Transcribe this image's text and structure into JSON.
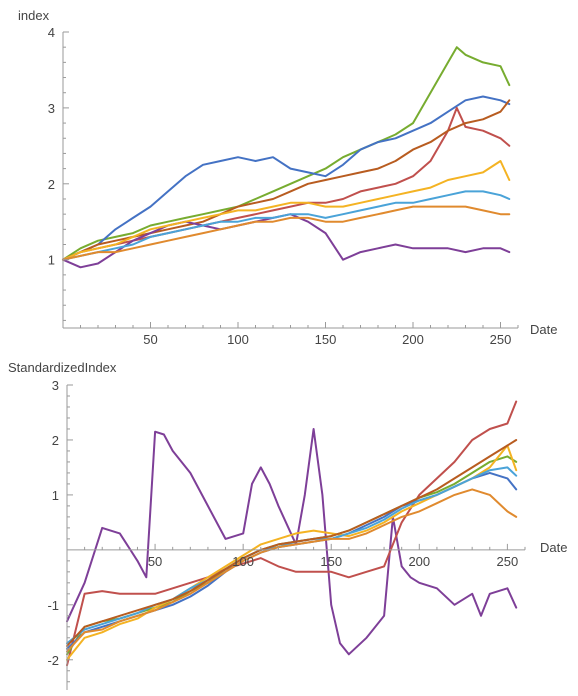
{
  "chart_data": [
    {
      "type": "line",
      "title": "",
      "xlabel": "Date",
      "ylabel": "index",
      "xlim": [
        0,
        260
      ],
      "ylim": [
        0.1,
        4.0
      ],
      "xticks": [
        50,
        100,
        150,
        200,
        250
      ],
      "yticks": [
        1,
        2,
        3,
        4
      ],
      "grid": false,
      "legend": "none",
      "series": [
        {
          "color": "#77ac30",
          "x": [
            0,
            10,
            20,
            30,
            40,
            50,
            60,
            70,
            80,
            90,
            100,
            110,
            120,
            130,
            140,
            150,
            160,
            170,
            180,
            190,
            200,
            210,
            220,
            225,
            230,
            240,
            250,
            255
          ],
          "values": [
            1.0,
            1.15,
            1.25,
            1.3,
            1.35,
            1.45,
            1.5,
            1.55,
            1.6,
            1.65,
            1.7,
            1.8,
            1.9,
            2.0,
            2.1,
            2.2,
            2.35,
            2.45,
            2.55,
            2.65,
            2.8,
            3.2,
            3.6,
            3.8,
            3.7,
            3.6,
            3.55,
            3.3
          ]
        },
        {
          "color": "#4472c4",
          "x": [
            0,
            10,
            20,
            30,
            40,
            50,
            60,
            70,
            80,
            90,
            100,
            110,
            120,
            130,
            140,
            150,
            160,
            170,
            180,
            190,
            200,
            210,
            220,
            230,
            240,
            250,
            255
          ],
          "values": [
            1.0,
            1.1,
            1.2,
            1.4,
            1.55,
            1.7,
            1.9,
            2.1,
            2.25,
            2.3,
            2.35,
            2.3,
            2.35,
            2.2,
            2.15,
            2.1,
            2.25,
            2.45,
            2.55,
            2.6,
            2.7,
            2.8,
            2.95,
            3.1,
            3.15,
            3.1,
            3.05
          ]
        },
        {
          "color": "#c0504d",
          "x": [
            0,
            10,
            20,
            30,
            40,
            50,
            60,
            70,
            80,
            90,
            100,
            110,
            120,
            130,
            140,
            150,
            160,
            170,
            180,
            190,
            200,
            210,
            220,
            225,
            230,
            240,
            250,
            255
          ],
          "values": [
            1.0,
            1.1,
            1.15,
            1.2,
            1.25,
            1.3,
            1.35,
            1.4,
            1.45,
            1.5,
            1.55,
            1.6,
            1.65,
            1.7,
            1.75,
            1.75,
            1.8,
            1.9,
            1.95,
            2.0,
            2.1,
            2.3,
            2.7,
            3.0,
            2.75,
            2.7,
            2.6,
            2.5
          ]
        },
        {
          "color": "#b85c20",
          "x": [
            0,
            10,
            20,
            30,
            40,
            50,
            60,
            70,
            80,
            90,
            100,
            110,
            120,
            130,
            140,
            150,
            160,
            170,
            180,
            190,
            200,
            210,
            220,
            230,
            240,
            250,
            255
          ],
          "values": [
            1.0,
            1.1,
            1.2,
            1.25,
            1.3,
            1.35,
            1.4,
            1.45,
            1.5,
            1.6,
            1.7,
            1.75,
            1.8,
            1.9,
            2.0,
            2.05,
            2.1,
            2.15,
            2.2,
            2.3,
            2.45,
            2.55,
            2.7,
            2.8,
            2.85,
            2.95,
            3.1
          ]
        },
        {
          "color": "#7e3f98",
          "x": [
            0,
            10,
            20,
            30,
            40,
            50,
            60,
            70,
            80,
            90,
            100,
            110,
            120,
            130,
            140,
            150,
            160,
            170,
            180,
            190,
            200,
            210,
            220,
            230,
            240,
            250,
            255
          ],
          "values": [
            1.0,
            0.9,
            0.95,
            1.1,
            1.25,
            1.35,
            1.45,
            1.5,
            1.45,
            1.4,
            1.45,
            1.5,
            1.55,
            1.6,
            1.5,
            1.35,
            1.0,
            1.1,
            1.15,
            1.2,
            1.15,
            1.15,
            1.15,
            1.1,
            1.15,
            1.15,
            1.1
          ]
        },
        {
          "color": "#f4b323",
          "x": [
            0,
            10,
            20,
            30,
            40,
            50,
            60,
            70,
            80,
            90,
            100,
            110,
            120,
            130,
            140,
            150,
            160,
            170,
            180,
            190,
            200,
            210,
            220,
            230,
            240,
            250,
            255
          ],
          "values": [
            1.0,
            1.1,
            1.15,
            1.2,
            1.3,
            1.4,
            1.45,
            1.5,
            1.55,
            1.6,
            1.65,
            1.65,
            1.7,
            1.75,
            1.75,
            1.7,
            1.7,
            1.75,
            1.8,
            1.85,
            1.9,
            1.95,
            2.05,
            2.1,
            2.15,
            2.3,
            2.05
          ]
        },
        {
          "color": "#4aa3d8",
          "x": [
            0,
            10,
            20,
            30,
            40,
            50,
            60,
            70,
            80,
            90,
            100,
            110,
            120,
            130,
            140,
            150,
            160,
            170,
            180,
            190,
            200,
            210,
            220,
            230,
            240,
            250,
            255
          ],
          "values": [
            1.0,
            1.05,
            1.1,
            1.15,
            1.2,
            1.3,
            1.35,
            1.4,
            1.45,
            1.5,
            1.5,
            1.55,
            1.55,
            1.6,
            1.6,
            1.55,
            1.6,
            1.65,
            1.7,
            1.75,
            1.75,
            1.8,
            1.85,
            1.9,
            1.9,
            1.85,
            1.8
          ]
        },
        {
          "color": "#e08a2e",
          "x": [
            0,
            10,
            20,
            30,
            40,
            50,
            60,
            70,
            80,
            90,
            100,
            110,
            120,
            130,
            140,
            150,
            160,
            170,
            180,
            190,
            200,
            210,
            220,
            230,
            240,
            250,
            255
          ],
          "values": [
            1.0,
            1.05,
            1.1,
            1.1,
            1.15,
            1.2,
            1.25,
            1.3,
            1.35,
            1.4,
            1.45,
            1.5,
            1.5,
            1.55,
            1.55,
            1.5,
            1.5,
            1.55,
            1.6,
            1.65,
            1.7,
            1.7,
            1.7,
            1.7,
            1.65,
            1.6,
            1.6
          ]
        }
      ]
    },
    {
      "type": "line",
      "title": "",
      "xlabel": "Date",
      "ylabel": "StandardizedIndex",
      "xlim": [
        0,
        260
      ],
      "ylim": [
        -2.55,
        3.0
      ],
      "xticks": [
        50,
        100,
        150,
        200,
        250
      ],
      "yticks": [
        -2,
        -1,
        1,
        2,
        3
      ],
      "grid": false,
      "legend": "none",
      "series": [
        {
          "color": "#7e3f98",
          "x": [
            0,
            10,
            20,
            30,
            40,
            45,
            50,
            55,
            60,
            70,
            80,
            90,
            100,
            105,
            110,
            115,
            120,
            130,
            135,
            140,
            145,
            150,
            155,
            160,
            170,
            180,
            185,
            190,
            195,
            200,
            210,
            220,
            230,
            235,
            240,
            250,
            255
          ],
          "values": [
            -1.3,
            -0.6,
            0.4,
            0.3,
            -0.2,
            -0.5,
            2.15,
            2.1,
            1.8,
            1.4,
            0.8,
            0.2,
            0.3,
            1.2,
            1.5,
            1.2,
            0.8,
            0.1,
            1.0,
            2.2,
            1.0,
            -1.0,
            -1.7,
            -1.9,
            -1.6,
            -1.2,
            0.6,
            -0.3,
            -0.5,
            -0.6,
            -0.7,
            -1.0,
            -0.8,
            -1.2,
            -0.8,
            -0.7,
            -1.05
          ]
        },
        {
          "color": "#c0504d",
          "x": [
            0,
            10,
            20,
            30,
            40,
            50,
            60,
            70,
            80,
            90,
            100,
            110,
            120,
            130,
            140,
            150,
            160,
            170,
            180,
            190,
            200,
            210,
            220,
            230,
            240,
            250,
            255
          ],
          "values": [
            -2.1,
            -0.8,
            -0.75,
            -0.8,
            -0.8,
            -0.8,
            -0.7,
            -0.6,
            -0.5,
            -0.35,
            -0.25,
            -0.15,
            -0.3,
            -0.4,
            -0.4,
            -0.4,
            -0.5,
            -0.4,
            -0.3,
            0.5,
            1.0,
            1.3,
            1.6,
            2.0,
            2.2,
            2.3,
            2.7
          ]
        },
        {
          "color": "#77ac30",
          "x": [
            0,
            10,
            20,
            30,
            40,
            50,
            60,
            70,
            80,
            90,
            100,
            110,
            120,
            130,
            140,
            150,
            160,
            170,
            180,
            190,
            200,
            210,
            220,
            230,
            240,
            250,
            255
          ],
          "values": [
            -1.9,
            -1.4,
            -1.3,
            -1.25,
            -1.15,
            -1.05,
            -0.95,
            -0.75,
            -0.6,
            -0.35,
            -0.15,
            0.0,
            0.1,
            0.15,
            0.2,
            0.25,
            0.35,
            0.5,
            0.65,
            0.8,
            0.95,
            1.05,
            1.2,
            1.4,
            1.6,
            1.7,
            1.6
          ]
        },
        {
          "color": "#4472c4",
          "x": [
            0,
            10,
            20,
            30,
            40,
            50,
            60,
            70,
            80,
            90,
            100,
            110,
            120,
            130,
            140,
            150,
            160,
            170,
            180,
            190,
            200,
            210,
            220,
            230,
            240,
            250,
            255
          ],
          "values": [
            -1.8,
            -1.5,
            -1.4,
            -1.3,
            -1.2,
            -1.1,
            -1.0,
            -0.85,
            -0.65,
            -0.4,
            -0.2,
            -0.05,
            0.05,
            0.1,
            0.15,
            0.2,
            0.3,
            0.45,
            0.6,
            0.8,
            0.9,
            1.0,
            1.15,
            1.3,
            1.4,
            1.3,
            1.1
          ]
        },
        {
          "color": "#f4b323",
          "x": [
            0,
            10,
            20,
            30,
            40,
            50,
            60,
            70,
            80,
            90,
            100,
            110,
            120,
            130,
            140,
            150,
            160,
            170,
            180,
            190,
            200,
            210,
            220,
            230,
            240,
            250,
            255
          ],
          "values": [
            -2.0,
            -1.6,
            -1.5,
            -1.35,
            -1.25,
            -1.05,
            -0.9,
            -0.7,
            -0.5,
            -0.3,
            -0.1,
            0.1,
            0.2,
            0.3,
            0.35,
            0.3,
            0.25,
            0.35,
            0.5,
            0.7,
            0.85,
            1.0,
            1.15,
            1.3,
            1.5,
            1.9,
            1.45
          ]
        },
        {
          "color": "#4aa3d8",
          "x": [
            0,
            10,
            20,
            30,
            40,
            50,
            60,
            70,
            80,
            90,
            100,
            110,
            120,
            130,
            140,
            150,
            160,
            170,
            180,
            190,
            200,
            210,
            220,
            230,
            240,
            250,
            255
          ],
          "values": [
            -1.7,
            -1.45,
            -1.35,
            -1.25,
            -1.15,
            -1.0,
            -0.9,
            -0.7,
            -0.55,
            -0.35,
            -0.15,
            0.0,
            0.05,
            0.15,
            0.2,
            0.2,
            0.3,
            0.4,
            0.55,
            0.75,
            0.9,
            1.0,
            1.15,
            1.3,
            1.45,
            1.5,
            1.35
          ]
        },
        {
          "color": "#e08a2e",
          "x": [
            0,
            10,
            20,
            30,
            40,
            50,
            60,
            70,
            80,
            90,
            100,
            110,
            120,
            130,
            140,
            150,
            160,
            170,
            180,
            190,
            200,
            210,
            220,
            230,
            240,
            250,
            255
          ],
          "values": [
            -1.85,
            -1.5,
            -1.45,
            -1.3,
            -1.2,
            -1.1,
            -0.95,
            -0.8,
            -0.6,
            -0.4,
            -0.2,
            -0.05,
            0.05,
            0.1,
            0.15,
            0.2,
            0.2,
            0.3,
            0.45,
            0.6,
            0.7,
            0.85,
            1.0,
            1.1,
            1.0,
            0.7,
            0.6
          ]
        },
        {
          "color": "#b85c20",
          "x": [
            0,
            10,
            20,
            30,
            40,
            50,
            60,
            70,
            80,
            90,
            100,
            110,
            120,
            130,
            140,
            150,
            160,
            170,
            180,
            190,
            200,
            210,
            220,
            230,
            240,
            250,
            255
          ],
          "values": [
            -1.75,
            -1.4,
            -1.3,
            -1.2,
            -1.1,
            -1.0,
            -0.9,
            -0.75,
            -0.55,
            -0.35,
            -0.15,
            0.0,
            0.1,
            0.15,
            0.2,
            0.25,
            0.35,
            0.5,
            0.65,
            0.8,
            0.95,
            1.1,
            1.3,
            1.5,
            1.7,
            1.9,
            2.0
          ]
        }
      ]
    }
  ]
}
